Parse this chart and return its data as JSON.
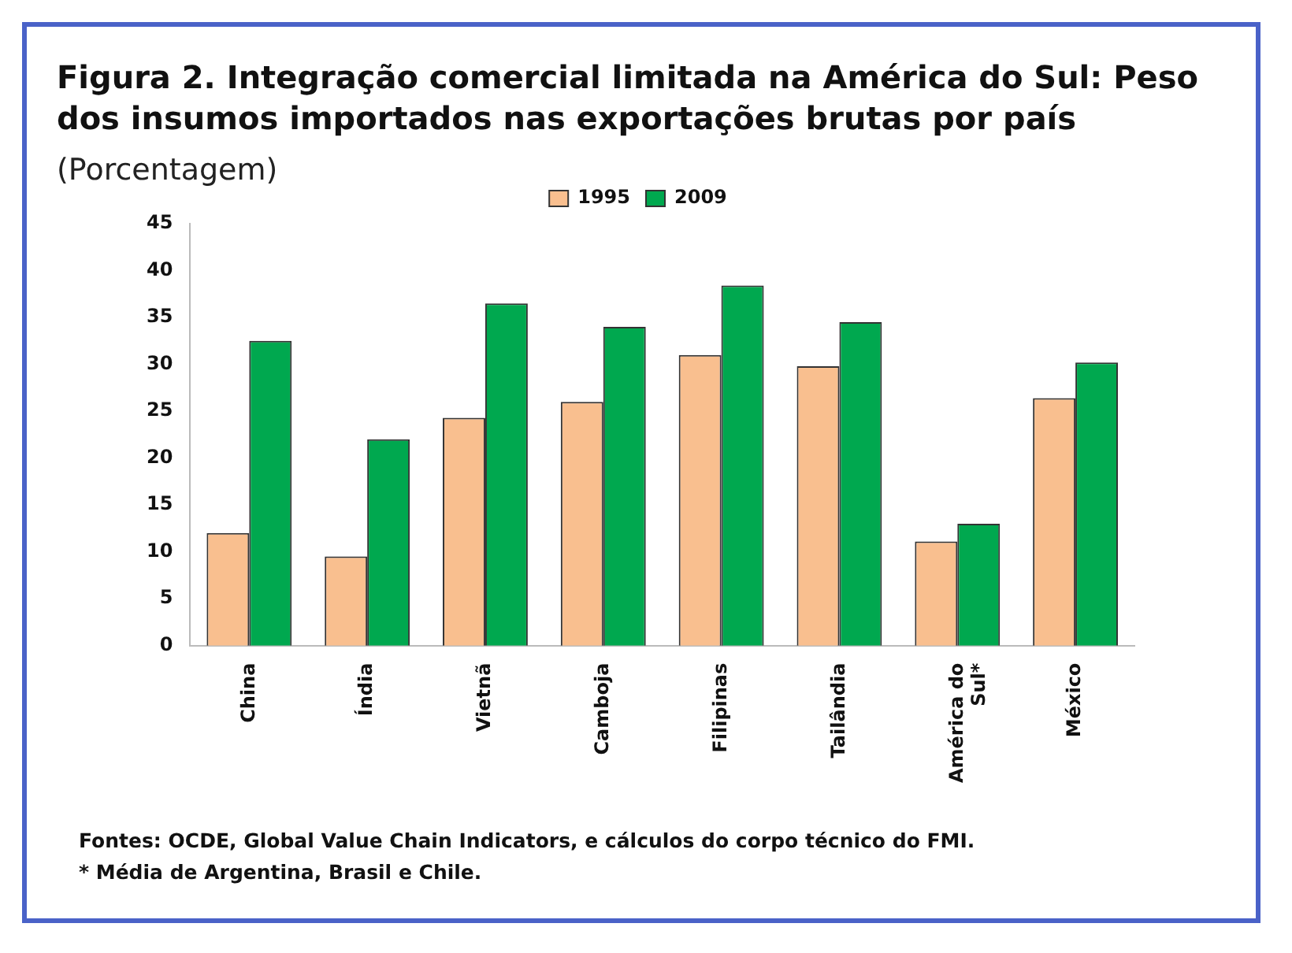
{
  "chart_data": {
    "type": "bar",
    "title": "Figura 2. Integração comercial limitada na América do Sul: Peso dos insumos importados nas exportações brutas por país",
    "subtitle": "(Porcentagem)",
    "categories": [
      "China",
      "Índia",
      "Vietnã",
      "Camboja",
      "Filipinas",
      "Tailândia",
      "América do Sul*",
      "México"
    ],
    "series": [
      {
        "name": "1995",
        "color": "#f9bf8f",
        "values": [
          12,
          9.5,
          24.3,
          26,
          31,
          29.8,
          11.1,
          26.4
        ]
      },
      {
        "name": "2009",
        "color": "#00a84f",
        "values": [
          32.5,
          22,
          36.5,
          34,
          38.4,
          34.5,
          13,
          30.2
        ]
      }
    ],
    "ylim": [
      0,
      45
    ],
    "yticks": [
      0,
      5,
      10,
      15,
      20,
      25,
      30,
      35,
      40,
      45
    ],
    "grid": false,
    "legend": "top",
    "annotations": [
      "Fontes: OCDE, Global Value Chain Indicators, e cálculos do corpo técnico do FMI.",
      "* Média de Argentina, Brasil e Chile."
    ]
  }
}
